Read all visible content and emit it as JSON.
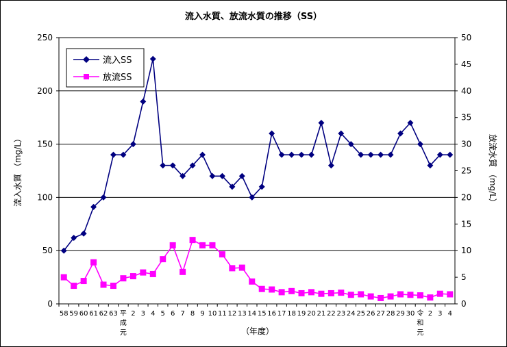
{
  "chart_data": {
    "type": "line",
    "title": "流入水質、放流水質の推移（SS）",
    "xlabel": "（年度）",
    "ylabel_left": "流入水質 （mg/L）",
    "ylabel_right": "放流水質 （mg/L）",
    "ylim_left": [
      0,
      250
    ],
    "ylim_right": [
      0,
      50
    ],
    "yticks_left": [
      "0",
      "50",
      "100",
      "150",
      "200",
      "250"
    ],
    "yticks_right": [
      "0",
      "5",
      "10",
      "15",
      "20",
      "25",
      "30",
      "35",
      "40",
      "45",
      "50"
    ],
    "grid": "horizontal",
    "legend_position": "top-left",
    "categories": [
      "58",
      "59",
      "60",
      "61",
      "62",
      "63",
      "平成元",
      "2",
      "3",
      "4",
      "5",
      "6",
      "7",
      "8",
      "9",
      "10",
      "11",
      "12",
      "13",
      "14",
      "15",
      "16",
      "17",
      "18",
      "19",
      "20",
      "21",
      "22",
      "23",
      "24",
      "25",
      "26",
      "27",
      "28",
      "29",
      "30",
      "令和元",
      "2",
      "3",
      "4"
    ],
    "series": [
      {
        "name": "流入SS",
        "axis": "left",
        "color": "#000080",
        "marker": "diamond",
        "values": [
          50,
          62,
          66,
          91,
          100,
          140,
          140,
          150,
          190,
          230,
          130,
          130,
          120,
          130,
          140,
          120,
          120,
          110,
          120,
          100,
          110,
          160,
          140,
          140,
          140,
          140,
          170,
          130,
          160,
          150,
          140,
          140,
          140,
          140,
          160,
          170,
          150,
          130,
          140,
          140
        ]
      },
      {
        "name": "放流SS",
        "axis": "right",
        "color": "#ff00ff",
        "marker": "square",
        "values": [
          5.0,
          3.4,
          4.3,
          7.8,
          3.6,
          3.4,
          4.8,
          5.2,
          5.9,
          5.6,
          8.4,
          11.0,
          6.0,
          12.0,
          11.0,
          11.0,
          9.3,
          6.7,
          6.8,
          4.2,
          2.8,
          2.7,
          2.2,
          2.4,
          2.0,
          2.2,
          1.9,
          2.0,
          2.1,
          1.7,
          1.8,
          1.4,
          1.1,
          1.4,
          1.8,
          1.7,
          1.6,
          1.2,
          1.9,
          1.8
        ]
      }
    ]
  }
}
